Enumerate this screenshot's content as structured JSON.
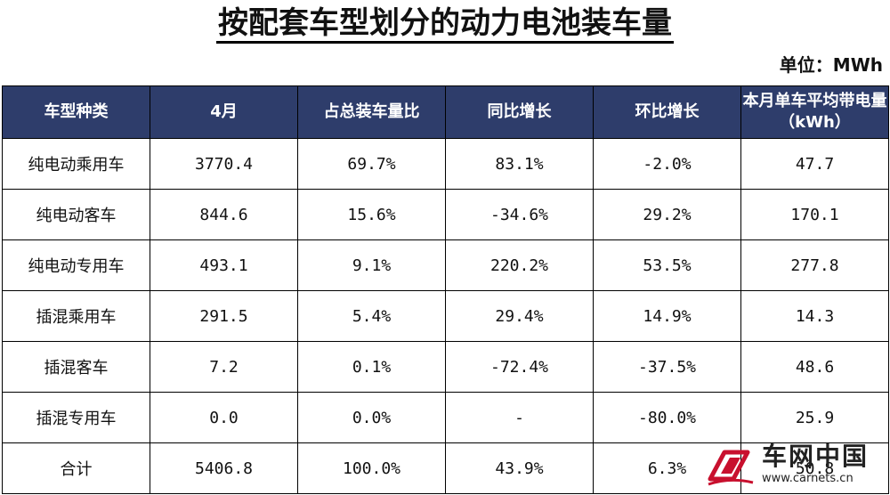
{
  "title": "按配套车型划分的动力电池装车量",
  "unit_label": "单位：MWh",
  "table": {
    "headers": [
      "车型种类",
      "4月",
      "占总装车量比",
      "同比增长",
      "环比增长",
      "本月单车平均带电量（kWh）"
    ],
    "rows": [
      [
        "纯电动乘用车",
        "3770.4",
        "69.7%",
        "83.1%",
        "-2.0%",
        "47.7"
      ],
      [
        "纯电动客车",
        "844.6",
        "15.6%",
        "-34.6%",
        "29.2%",
        "170.1"
      ],
      [
        "纯电动专用车",
        "493.1",
        "9.1%",
        "220.2%",
        "53.5%",
        "277.8"
      ],
      [
        "插混乘用车",
        "291.5",
        "5.4%",
        "29.4%",
        "14.9%",
        "14.3"
      ],
      [
        "插混客车",
        "7.2",
        "0.1%",
        "-72.4%",
        "-37.5%",
        "48.6"
      ],
      [
        "插混专用车",
        "0.0",
        "0.0%",
        "-",
        "-80.0%",
        "25.9"
      ],
      [
        "合计",
        "5406.8",
        "100.0%",
        "43.9%",
        "6.3%",
        "50.8"
      ]
    ]
  },
  "watermark": {
    "name": "车网中国",
    "url": "www.carnets.cn",
    "logo_color": "#c8102e",
    "icon": "carnets-logo-icon"
  },
  "colors": {
    "header_bg": "#2e3d6b",
    "header_text": "#ffffff"
  }
}
